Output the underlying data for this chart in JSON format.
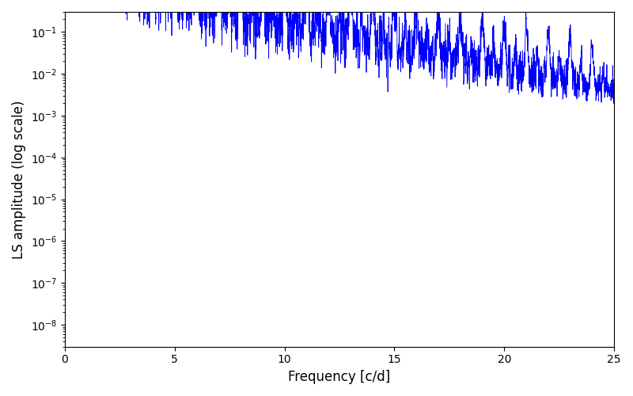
{
  "xlabel": "Frequency [c/d]",
  "ylabel": "LS amplitude (log scale)",
  "line_color": "#0000ff",
  "background_color": "#ffffff",
  "xlim": [
    0,
    25
  ],
  "ylim_log": [
    -8.5,
    -0.5
  ],
  "xmin": 0,
  "xmax": 25,
  "ymin": 3e-09,
  "ymax": 0.3,
  "xlabel_fontsize": 12,
  "ylabel_fontsize": 12,
  "figsize": [
    8.0,
    5.0
  ],
  "dpi": 100,
  "seed": 42,
  "n_points": 5000,
  "n_obs": 300,
  "obs_baseline": 365,
  "line_width": 0.6
}
